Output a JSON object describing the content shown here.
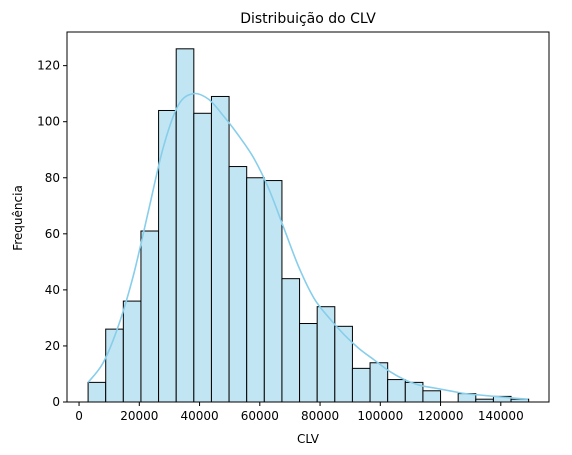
{
  "chart_data": {
    "type": "bar",
    "title": "Distribuição do CLV",
    "xlabel": "CLV",
    "ylabel": "Frequência",
    "xlim": [
      -4000,
      156000
    ],
    "ylim": [
      0,
      132
    ],
    "xticks": [
      0,
      20000,
      40000,
      60000,
      80000,
      100000,
      120000,
      140000
    ],
    "xtick_labels": [
      "0",
      "20000",
      "40000",
      "60000",
      "80000",
      "100000",
      "120000",
      "140000"
    ],
    "yticks": [
      0,
      20,
      40,
      60,
      80,
      100,
      120
    ],
    "ytick_labels": [
      "0",
      "20",
      "40",
      "60",
      "80",
      "100",
      "120"
    ],
    "grid": false,
    "bar_color": "#c2e5f3",
    "edge_color": "#000000",
    "kde_color": "#87ceeb",
    "bins": [
      {
        "x0": 3000,
        "x1": 8850,
        "count": 7
      },
      {
        "x0": 8850,
        "x1": 14700,
        "count": 26
      },
      {
        "x0": 14700,
        "x1": 20550,
        "count": 36
      },
      {
        "x0": 20550,
        "x1": 26400,
        "count": 61
      },
      {
        "x0": 26400,
        "x1": 32250,
        "count": 104
      },
      {
        "x0": 32250,
        "x1": 38100,
        "count": 126
      },
      {
        "x0": 38100,
        "x1": 43950,
        "count": 103
      },
      {
        "x0": 43950,
        "x1": 49800,
        "count": 109
      },
      {
        "x0": 49800,
        "x1": 55650,
        "count": 84
      },
      {
        "x0": 55650,
        "x1": 61500,
        "count": 80
      },
      {
        "x0": 61500,
        "x1": 67350,
        "count": 79
      },
      {
        "x0": 67350,
        "x1": 73200,
        "count": 44
      },
      {
        "x0": 73200,
        "x1": 79050,
        "count": 28
      },
      {
        "x0": 79050,
        "x1": 84900,
        "count": 34
      },
      {
        "x0": 84900,
        "x1": 90750,
        "count": 27
      },
      {
        "x0": 90750,
        "x1": 96600,
        "count": 12
      },
      {
        "x0": 96600,
        "x1": 102450,
        "count": 14
      },
      {
        "x0": 102450,
        "x1": 108300,
        "count": 8
      },
      {
        "x0": 108300,
        "x1": 114150,
        "count": 7
      },
      {
        "x0": 114150,
        "x1": 120000,
        "count": 4
      },
      {
        "x0": 120000,
        "x1": 125850,
        "count": 0
      },
      {
        "x0": 125850,
        "x1": 131700,
        "count": 3
      },
      {
        "x0": 131700,
        "x1": 137550,
        "count": 1
      },
      {
        "x0": 137550,
        "x1": 143400,
        "count": 2
      },
      {
        "x0": 143400,
        "x1": 149250,
        "count": 1
      }
    ],
    "kde": {
      "x": [
        3000,
        8000,
        13000,
        18000,
        23000,
        28000,
        33000,
        38000,
        43000,
        48000,
        53000,
        58000,
        63000,
        68000,
        73000,
        78000,
        83000,
        88000,
        93000,
        98000,
        103000,
        108000,
        113000,
        118000,
        123000,
        128000,
        133000,
        138000,
        143000,
        149000
      ],
      "y": [
        7,
        14,
        27,
        45,
        68,
        91,
        106,
        110,
        108,
        102,
        95,
        87,
        76,
        62,
        48,
        37,
        30,
        24,
        19,
        15,
        11,
        8,
        6,
        5,
        4,
        3,
        2.5,
        2,
        1.5,
        1
      ]
    }
  }
}
